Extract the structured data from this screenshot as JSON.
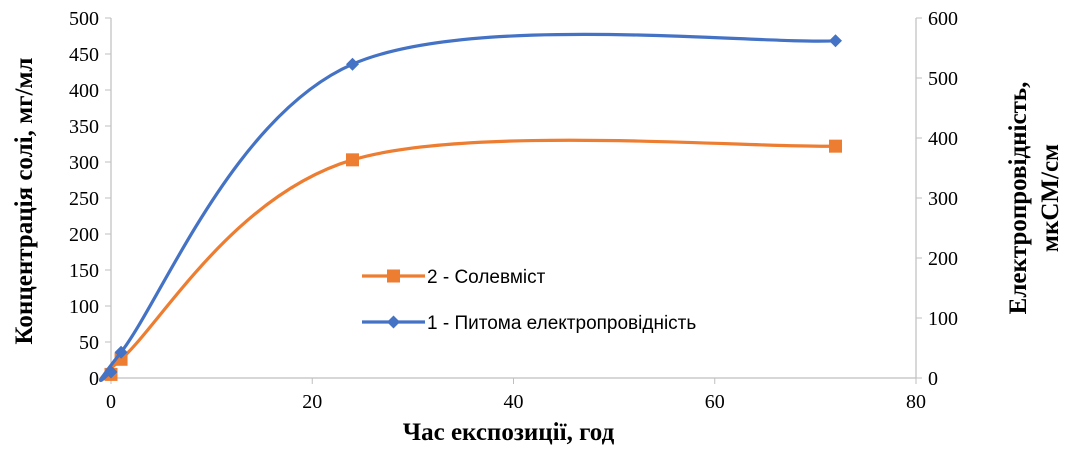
{
  "chart_data": {
    "type": "line",
    "smooth": true,
    "xlabel": "Час експозиції, год",
    "ylabel_left": "Концентрація солі, мг/мл",
    "ylabel_right": [
      "Електропровідність,",
      "мкСМ/см"
    ],
    "xlim": [
      0,
      80
    ],
    "xticks": [
      0,
      20,
      40,
      60,
      80
    ],
    "ylim_left": [
      0,
      500
    ],
    "yticks_left": [
      0,
      50,
      100,
      150,
      200,
      250,
      300,
      350,
      400,
      450,
      500
    ],
    "ylim_right": [
      0,
      600
    ],
    "yticks_right": [
      0,
      100,
      200,
      300,
      400,
      500,
      600
    ],
    "grid": false,
    "legend_position": "center",
    "series": [
      {
        "name": "2 - Солевміст",
        "axis": "left",
        "marker": "square",
        "color": "#ED7D31",
        "x": [
          0,
          1,
          24,
          72
        ],
        "y": [
          5,
          26,
          303,
          322
        ]
      },
      {
        "name": "1 - Питома електропровідність",
        "axis": "right",
        "marker": "diamond",
        "color": "#4472C4",
        "x": [
          0,
          1,
          24,
          72
        ],
        "y": [
          10,
          43,
          523,
          562
        ]
      }
    ]
  }
}
